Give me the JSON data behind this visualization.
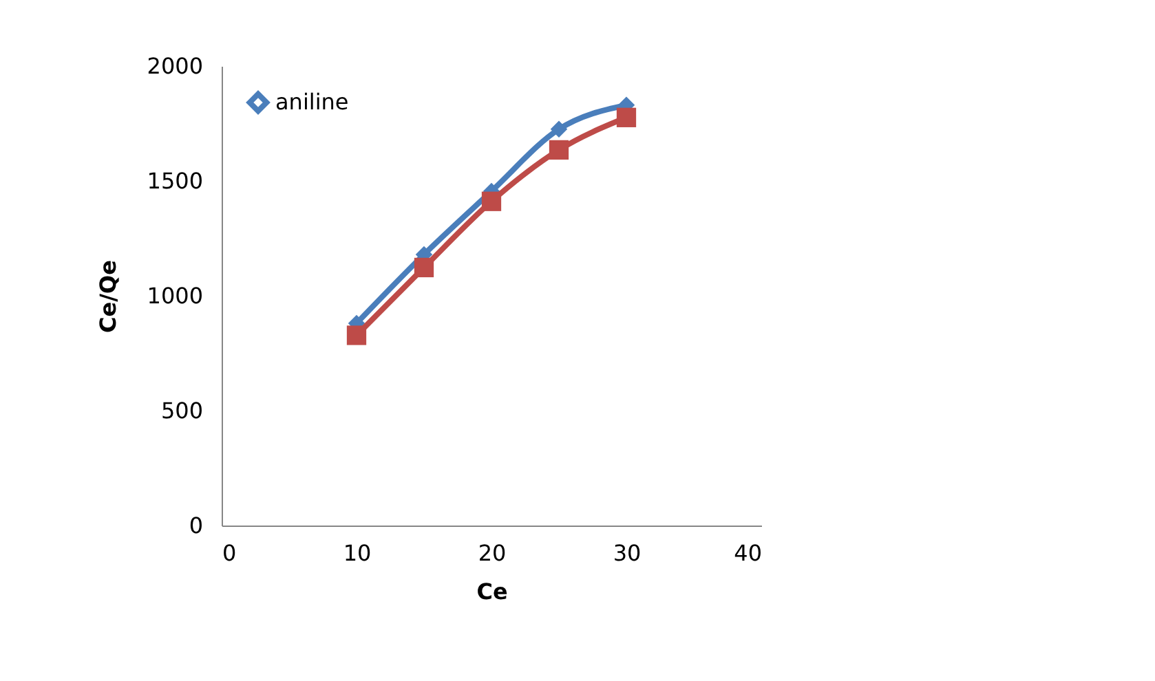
{
  "chart_data": {
    "type": "line",
    "xlabel": "Ce",
    "ylabel": "Ce/Qe",
    "x": [
      10,
      15,
      20,
      25,
      30
    ],
    "series": [
      {
        "name": "aniline",
        "color": "#4a7ebb",
        "marker": "diamond",
        "values": [
          880,
          1180,
          1455,
          1725,
          1830
        ]
      },
      {
        "color": "#be4b48",
        "marker": "square",
        "values": [
          828,
          1123,
          1411,
          1635,
          1776
        ]
      }
    ],
    "xlim": [
      0,
      40
    ],
    "xticks": [
      0,
      10,
      20,
      30,
      40
    ],
    "ylim": [
      0,
      2000
    ],
    "yticks": [
      0,
      500,
      1000,
      1500,
      2000
    ],
    "grid": false,
    "legend": "top left",
    "line_style": "solid"
  }
}
